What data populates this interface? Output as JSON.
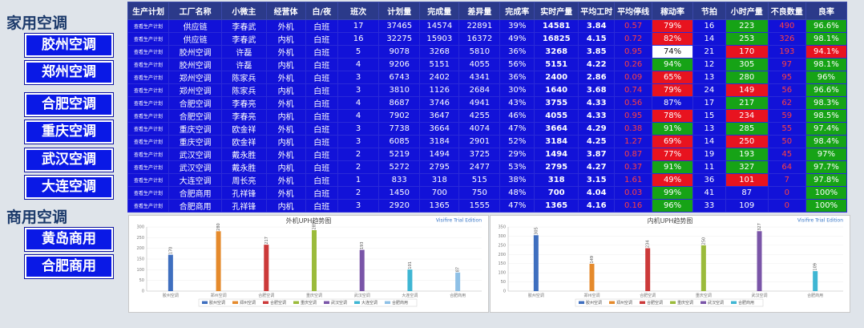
{
  "sidebar": {
    "group_home": "家用空调",
    "group_commercial": "商用空调",
    "home_items": [
      "胶州空调",
      "郑州空调",
      "合肥空调",
      "重庆空调",
      "武汉空调",
      "大连空调"
    ],
    "commercial_items": [
      "黄岛商用",
      "合肥商用"
    ]
  },
  "table": {
    "headers": [
      "生产计划",
      "工厂名称",
      "小微主",
      "经营体",
      "白/夜",
      "班次",
      "计划量",
      "完成量",
      "差异量",
      "完成率",
      "实时产量",
      "平均工时",
      "平均停线",
      "稼动率",
      "节拍",
      "小时产量",
      "不良数量",
      "良率"
    ],
    "tag": "查看生产计划",
    "rows": [
      [
        "供应链",
        "李春武",
        "外机",
        "白班",
        "17",
        "37465",
        "14574",
        "22891",
        "39%",
        "14581",
        "3.84",
        "0.57",
        "79%",
        "16",
        "223",
        "490",
        "96.6%"
      ],
      [
        "供应链",
        "李春武",
        "内机",
        "白班",
        "16",
        "32275",
        "15903",
        "16372",
        "49%",
        "16825",
        "4.15",
        "0.72",
        "82%",
        "14",
        "253",
        "326",
        "98.1%"
      ],
      [
        "胶州空调",
        "许磊",
        "外机",
        "白班",
        "5",
        "9078",
        "3268",
        "5810",
        "36%",
        "3268",
        "3.85",
        "0.95",
        "74%",
        "21",
        "170",
        "193",
        "94.1%"
      ],
      [
        "胶州空调",
        "许磊",
        "内机",
        "白班",
        "4",
        "9206",
        "5151",
        "4055",
        "56%",
        "5151",
        "4.22",
        "0.26",
        "94%",
        "12",
        "305",
        "97",
        "98.1%"
      ],
      [
        "郑州空调",
        "陈家兵",
        "外机",
        "白班",
        "3",
        "6743",
        "2402",
        "4341",
        "36%",
        "2400",
        "2.86",
        "0.09",
        "65%",
        "13",
        "280",
        "95",
        "96%"
      ],
      [
        "郑州空调",
        "陈家兵",
        "内机",
        "白班",
        "3",
        "3810",
        "1126",
        "2684",
        "30%",
        "1640",
        "3.68",
        "0.74",
        "79%",
        "24",
        "149",
        "56",
        "96.6%"
      ],
      [
        "合肥空调",
        "李春亮",
        "外机",
        "白班",
        "4",
        "8687",
        "3746",
        "4941",
        "43%",
        "3755",
        "4.33",
        "0.56",
        "87%",
        "17",
        "217",
        "62",
        "98.3%"
      ],
      [
        "合肥空调",
        "李春亮",
        "内机",
        "白班",
        "4",
        "7902",
        "3647",
        "4255",
        "46%",
        "4055",
        "4.33",
        "0.95",
        "78%",
        "15",
        "234",
        "59",
        "98.5%"
      ],
      [
        "重庆空调",
        "欧金祥",
        "外机",
        "白班",
        "3",
        "7738",
        "3664",
        "4074",
        "47%",
        "3664",
        "4.29",
        "0.38",
        "91%",
        "13",
        "285",
        "55",
        "97.4%"
      ],
      [
        "重庆空调",
        "欧金祥",
        "内机",
        "白班",
        "3",
        "6085",
        "3184",
        "2901",
        "52%",
        "3184",
        "4.25",
        "1.27",
        "69%",
        "14",
        "250",
        "50",
        "98.4%"
      ],
      [
        "武汉空调",
        "戴永胜",
        "外机",
        "白班",
        "2",
        "5219",
        "1494",
        "3725",
        "29%",
        "1494",
        "3.87",
        "0.87",
        "77%",
        "19",
        "193",
        "45",
        "97%"
      ],
      [
        "武汉空调",
        "戴永胜",
        "内机",
        "白班",
        "2",
        "5272",
        "2795",
        "2477",
        "53%",
        "2795",
        "4.27",
        "0.37",
        "91%",
        "11",
        "327",
        "64",
        "97.7%"
      ],
      [
        "大连空调",
        "周长亮",
        "外机",
        "白班",
        "1",
        "833",
        "318",
        "515",
        "38%",
        "318",
        "3.15",
        "1.61",
        "49%",
        "36",
        "101",
        "7",
        "97.8%"
      ],
      [
        "合肥商用",
        "孔祥锋",
        "外机",
        "白班",
        "2",
        "1450",
        "700",
        "750",
        "48%",
        "700",
        "4.04",
        "0.03",
        "99%",
        "41",
        "87",
        "0",
        "100%"
      ],
      [
        "合肥商用",
        "孔祥锋",
        "内机",
        "白班",
        "3",
        "2920",
        "1365",
        "1555",
        "47%",
        "1365",
        "4.16",
        "0.16",
        "96%",
        "33",
        "109",
        "0",
        "100%"
      ]
    ],
    "util_colors": [
      "red",
      "red",
      "white",
      "green",
      "red",
      "red",
      "plain",
      "red",
      "green",
      "red",
      "red",
      "green",
      "red",
      "green",
      "green"
    ],
    "hourly_colors": [
      "green",
      "green",
      "red",
      "green",
      "green",
      "red",
      "green",
      "red",
      "green",
      "red",
      "green",
      "green",
      "red",
      "plain",
      "plain"
    ],
    "yield_colors": [
      "green",
      "green",
      "red",
      "green",
      "green",
      "green",
      "green",
      "green",
      "green",
      "green",
      "green",
      "green",
      "green",
      "green",
      "green"
    ]
  },
  "chart_data": [
    {
      "type": "bar",
      "title": "外机UPH趋势图",
      "watermark": "Visifire Trial Edition",
      "categories": [
        "胶州空调",
        "郑州空调",
        "合肥空调",
        "重庆空调",
        "武汉空调",
        "大连空调",
        "合肥商用"
      ],
      "values": [
        170,
        280,
        217,
        285,
        193,
        101,
        87
      ],
      "colors": [
        "#3f6fbf",
        "#e58a2c",
        "#cc3a3a",
        "#9bbb3b",
        "#7a55a8",
        "#3fb6d3",
        "#8ec0e6"
      ],
      "ylim": [
        0,
        300
      ],
      "yticks": [
        0,
        50,
        100,
        150,
        200,
        250,
        300
      ]
    },
    {
      "type": "bar",
      "title": "内机UPH趋势图",
      "watermark": "Visifire Trial Edition",
      "categories": [
        "胶州空调",
        "郑州空调",
        "合肥空调",
        "重庆空调",
        "武汉空调",
        "合肥商用"
      ],
      "values": [
        305,
        149,
        234,
        250,
        327,
        109
      ],
      "colors": [
        "#3f6fbf",
        "#e58a2c",
        "#cc3a3a",
        "#9bbb3b",
        "#7a55a8",
        "#3fb6d3"
      ],
      "ylim": [
        0,
        350
      ],
      "yticks": [
        0,
        50,
        100,
        150,
        200,
        250,
        300,
        350
      ]
    }
  ],
  "colors": {
    "nav_blue": "#0a19e6",
    "table_blue": "#1212d8",
    "header_blue": "#2b3a8a",
    "status_red": "#e8131f",
    "status_green": "#16a316"
  }
}
